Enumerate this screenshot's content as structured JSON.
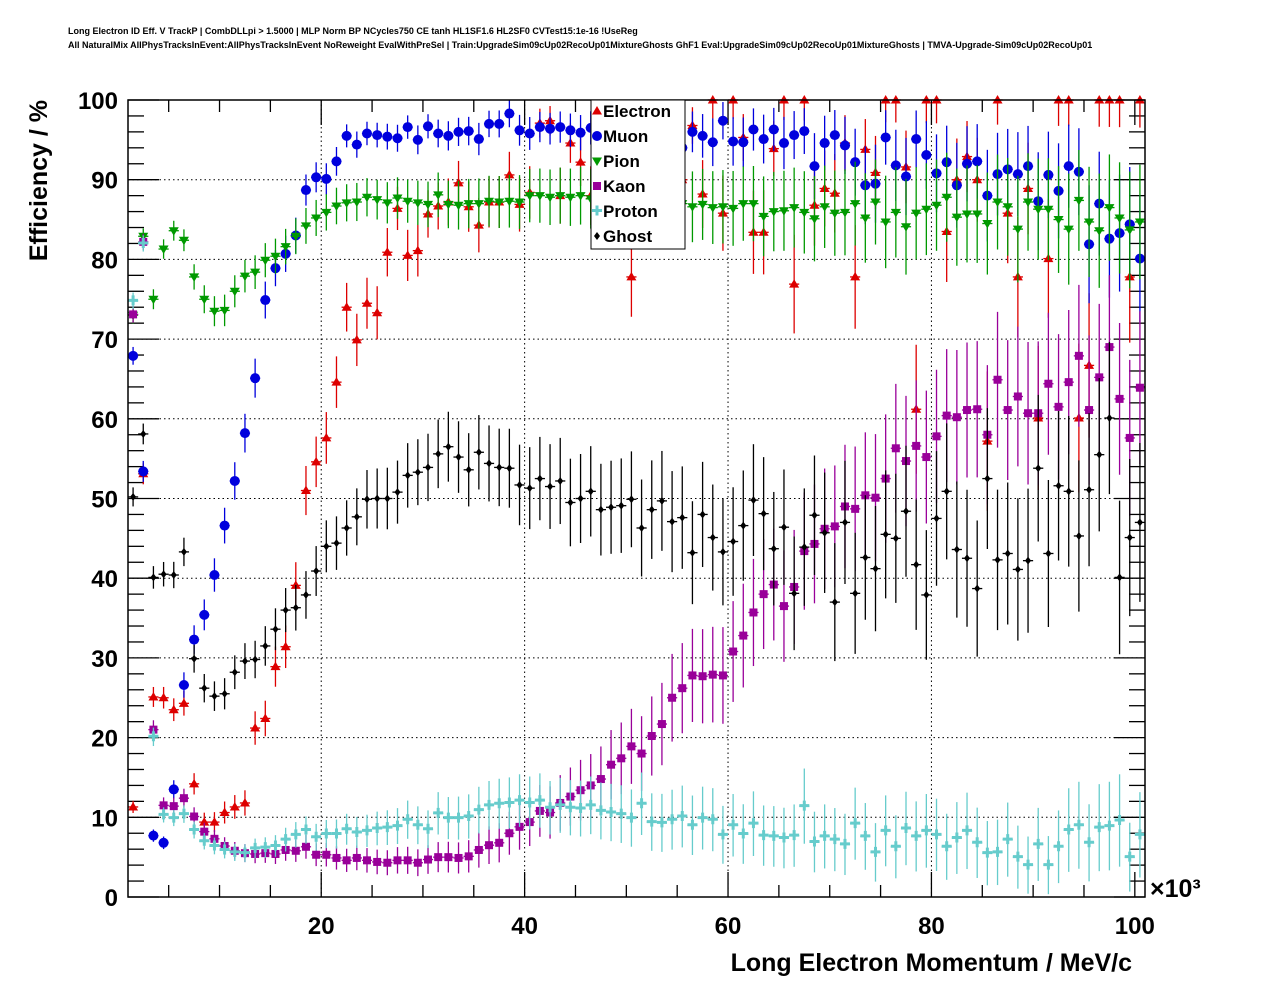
{
  "chart_data": {
    "type": "scatter",
    "title_line1": "Long Electron ID Eff. V TrackP | CombDLLpi > 1.5000 | MLP Norm BP NCycles750 CE tanh HL1SF1.6 HL2SF0 CVTest15:1e-16 !UseReg",
    "title_line2": "All NaturalMix AllPhysTracksInEvent:AllPhysTracksInEvent NoReweight EvalWithPreSel | Train:UpgradeSim09cUp02RecoUp01MixtureGhosts GhF1 Eval:UpgradeSim09cUp02RecoUp01MixtureGhosts | TMVA-Upgrade-Sim09cUp02RecoUp01",
    "xlabel": "Long Electron Momentum / MeV/c",
    "ylabel": "Efficiency / %",
    "x_multiplier": "×10³",
    "xlim": [
      1,
      101
    ],
    "ylim": [
      0,
      100
    ],
    "xticks": [
      "20",
      "40",
      "60",
      "80",
      "100"
    ],
    "yticks": [
      "0",
      "10",
      "20",
      "30",
      "40",
      "50",
      "60",
      "70",
      "80",
      "90",
      "100"
    ],
    "grid": true,
    "legend_position": "top-center",
    "x": [
      1.5,
      2.5,
      3.5,
      4.5,
      5.5,
      6.5,
      7.5,
      8.5,
      9.5,
      10.5,
      11.5,
      12.5,
      13.5,
      14.5,
      15.5,
      16.5,
      17.5,
      18.5,
      19.5,
      20.5,
      21.5,
      22.5,
      23.5,
      24.5,
      25.5,
      26.5,
      27.5,
      28.5,
      29.5,
      30.5,
      31.5,
      32.5,
      33.5,
      34.5,
      35.5,
      36.5,
      37.5,
      38.5,
      39.5,
      40.5,
      41.5,
      42.5,
      43.5,
      44.5,
      45.5,
      46.5,
      47.5,
      48.5,
      49.5,
      50.5,
      51.5,
      52.5,
      53.5,
      54.5,
      55.5,
      56.5,
      57.5,
      58.5,
      59.5,
      60.5,
      61.5,
      62.5,
      63.5,
      64.5,
      65.5,
      66.5,
      67.5,
      68.5,
      69.5,
      70.5,
      71.5,
      72.5,
      73.5,
      74.5,
      75.5,
      76.5,
      77.5,
      78.5,
      79.5,
      80.5,
      81.5,
      82.5,
      83.5,
      84.5,
      85.5,
      86.5,
      87.5,
      88.5,
      89.5,
      90.5,
      91.5,
      92.5,
      93.5,
      94.5,
      95.5,
      96.5,
      97.5,
      98.5,
      99.5,
      100.5
    ],
    "series": [
      {
        "name": "Electron",
        "color": "#dd0000",
        "marker": "triangle-up",
        "values": [
          11.3,
          53.1,
          25.1,
          25.0,
          23.5,
          24.3,
          14.2,
          9.4,
          9.4,
          10.6,
          11.3,
          11.8,
          21.2,
          22.4,
          28.9,
          31.4,
          39.1,
          51.0,
          54.6,
          57.6,
          64.6,
          74.0,
          69.9,
          74.5,
          73.3,
          80.9,
          86.4,
          80.5,
          81.1,
          85.7,
          86.7,
          87.2,
          89.6,
          86.6,
          84.3,
          87.2,
          87.2,
          90.6,
          86.9,
          88.4,
          97.1,
          97.4,
          88.0,
          94.6,
          92.2,
          88.0,
          86.0,
          87.0,
          88.0,
          77.8,
          87.0,
          88.0,
          87.0,
          88.0,
          90.0,
          96.8,
          88.2,
          100,
          85.8,
          100,
          95.3,
          83.4,
          83.4,
          93.9,
          100,
          76.9,
          100,
          86.8,
          88.9,
          88.3,
          94.6,
          77.8,
          93.8,
          90.9,
          100,
          100,
          91.6,
          61.2,
          100,
          100,
          83.5,
          90.0,
          92.9,
          90.0,
          57.2,
          100,
          85.8,
          77.8,
          88.9,
          60.1,
          80.1,
          100,
          100,
          60.1,
          66.7,
          100,
          100,
          100,
          77.8,
          100
        ]
      },
      {
        "name": "Muon",
        "color": "#0000dd",
        "marker": "circle",
        "values": [
          67.9,
          53.4,
          7.7,
          6.8,
          13.5,
          26.6,
          32.3,
          35.4,
          40.4,
          46.6,
          52.2,
          58.2,
          65.1,
          74.9,
          78.9,
          80.7,
          83.0,
          88.7,
          90.3,
          90.1,
          92.3,
          95.5,
          94.4,
          95.8,
          95.6,
          95.4,
          95.2,
          96.6,
          95.0,
          96.7,
          95.8,
          95.5,
          96.0,
          96.1,
          95.1,
          97.0,
          97.0,
          98.3,
          96.2,
          95.8,
          96.6,
          96.4,
          96.6,
          96.2,
          95.9,
          96.5,
          96.0,
          96.3,
          95.8,
          96.1,
          95.6,
          96.0,
          95.4,
          95.8,
          94.0,
          96.0,
          95.5,
          94.7,
          97.4,
          94.8,
          94.7,
          96.3,
          95.1,
          96.3,
          94.6,
          95.6,
          96.1,
          91.7,
          94.6,
          95.6,
          94.3,
          92.2,
          89.3,
          89.5,
          95.3,
          91.8,
          90.4,
          95.1,
          93.1,
          90.8,
          92.2,
          89.3,
          92.0,
          92.3,
          88.0,
          90.7,
          91.3,
          90.7,
          91.7,
          87.3,
          90.6,
          88.6,
          91.7,
          91.0,
          81.9,
          87.0,
          82.6,
          83.3,
          84.4,
          80.1
        ]
      },
      {
        "name": "Pion",
        "color": "#009900",
        "marker": "triangle-down",
        "values": [
          73.0,
          82.9,
          75.0,
          81.3,
          83.6,
          82.4,
          77.8,
          75.0,
          73.5,
          73.6,
          76.0,
          77.9,
          78.4,
          79.9,
          80.4,
          81.6,
          82.9,
          84.2,
          85.2,
          85.9,
          86.7,
          87.1,
          87.2,
          87.8,
          87.5,
          87.1,
          87.7,
          87.3,
          87.1,
          86.9,
          88.1,
          86.9,
          86.8,
          87.0,
          87.0,
          87.3,
          87.2,
          87.3,
          87.2,
          88.0,
          88.0,
          87.8,
          88.0,
          87.8,
          88.0,
          87.6,
          87.4,
          87.2,
          87.5,
          87.0,
          87.3,
          87.1,
          86.8,
          87.0,
          87.0,
          86.6,
          86.9,
          86.5,
          86.6,
          86.4,
          87.0,
          87.0,
          85.4,
          86.0,
          86.1,
          86.5,
          85.9,
          85.1,
          86.6,
          85.8,
          85.9,
          87.0,
          85.2,
          87.2,
          84.7,
          85.9,
          84.1,
          85.8,
          86.3,
          86.8,
          87.8,
          85.3,
          85.7,
          85.7,
          84.5,
          87.2,
          86.6,
          83.8,
          87.2,
          86.3,
          86.3,
          85.0,
          83.8,
          87.4,
          84.7,
          83.6,
          86.5,
          85.2,
          83.7,
          84.7
        ]
      },
      {
        "name": "Kaon",
        "color": "#990099",
        "marker": "square",
        "values": [
          73.1,
          82.2,
          21.0,
          11.5,
          11.4,
          12.4,
          10.1,
          8.2,
          7.3,
          6.4,
          5.8,
          5.5,
          5.4,
          5.5,
          5.4,
          5.9,
          5.8,
          6.3,
          5.3,
          5.3,
          4.9,
          4.6,
          4.9,
          4.6,
          4.4,
          4.3,
          4.6,
          4.6,
          4.3,
          4.7,
          5.0,
          5.0,
          4.9,
          5.1,
          5.9,
          6.5,
          6.8,
          8.0,
          8.8,
          9.4,
          10.8,
          10.6,
          11.8,
          12.6,
          13.4,
          14.0,
          14.8,
          16.6,
          17.4,
          18.9,
          18.0,
          20.2,
          21.7,
          25.0,
          26.2,
          27.8,
          27.7,
          27.9,
          27.8,
          30.8,
          32.8,
          35.7,
          38.0,
          39.2,
          36.5,
          38.9,
          43.4,
          44.3,
          46.2,
          46.5,
          49.0,
          48.7,
          50.4,
          50.1,
          52.5,
          56.3,
          54.7,
          56.6,
          55.2,
          57.8,
          60.4,
          60.2,
          61.1,
          61.2,
          58.0,
          64.9,
          61.1,
          62.8,
          60.7,
          60.7,
          64.4,
          61.5,
          64.6,
          67.9,
          61.1,
          65.2,
          69.0,
          62.5,
          57.6,
          63.9
        ]
      },
      {
        "name": "Proton",
        "color": "#66cccc",
        "marker": "cross",
        "values": [
          74.8,
          82.0,
          20.1,
          10.3,
          9.9,
          10.4,
          8.4,
          7.0,
          6.4,
          5.9,
          5.6,
          5.5,
          6.1,
          6.2,
          6.4,
          7.2,
          7.8,
          8.4,
          7.5,
          7.9,
          7.9,
          8.5,
          8.1,
          8.3,
          8.6,
          8.7,
          8.9,
          9.7,
          9.0,
          8.5,
          10.5,
          9.9,
          9.9,
          10.1,
          10.9,
          11.5,
          11.7,
          11.8,
          12.1,
          11.8,
          12.1,
          11.2,
          11.5,
          11.2,
          11.1,
          11.5,
          10.8,
          10.6,
          10.4,
          9.9,
          11.7,
          9.4,
          9.3,
          9.7,
          10.1,
          9.0,
          9.9,
          9.7,
          7.8,
          9.0,
          7.9,
          9.2,
          7.7,
          7.6,
          7.4,
          7.7,
          11.4,
          6.9,
          7.6,
          7.2,
          6.6,
          9.2,
          7.6,
          5.6,
          8.3,
          6.3,
          8.6,
          7.6,
          8.3,
          7.8,
          6.3,
          7.4,
          8.3,
          6.8,
          5.5,
          5.6,
          7.2,
          5.0,
          4.0,
          6.6,
          4.0,
          6.3,
          8.4,
          9.0,
          6.8,
          8.7,
          8.9,
          9.6,
          5.0,
          7.8
        ]
      },
      {
        "name": "Ghost",
        "color": "#000000",
        "marker": "diamond",
        "values": [
          50.2,
          58.1,
          40.1,
          40.5,
          40.4,
          43.3,
          29.9,
          26.2,
          25.2,
          25.5,
          28.2,
          29.6,
          29.8,
          31.5,
          33.6,
          36.0,
          36.3,
          37.9,
          40.9,
          44.0,
          44.4,
          46.3,
          47.7,
          49.9,
          50.0,
          50.0,
          50.8,
          52.9,
          53.3,
          53.9,
          55.6,
          56.5,
          55.2,
          53.6,
          55.8,
          54.4,
          53.9,
          53.8,
          51.7,
          51.3,
          52.5,
          51.5,
          52.2,
          49.5,
          50.0,
          50.9,
          48.6,
          48.9,
          49.1,
          49.9,
          46.3,
          48.6,
          49.7,
          47.1,
          47.6,
          43.2,
          48.0,
          45.1,
          43.3,
          44.6,
          46.6,
          49.8,
          48.1,
          43.7,
          46.4,
          38.1,
          43.9,
          47.9,
          45.7,
          37.0,
          47.0,
          38.1,
          42.6,
          41.2,
          45.5,
          45.0,
          48.4,
          41.7,
          37.9,
          47.5,
          50.9,
          43.6,
          42.5,
          38.7,
          52.5,
          42.3,
          43.1,
          41.1,
          42.2,
          53.8,
          43.1,
          51.6,
          50.9,
          45.3,
          51.1,
          55.5,
          60.1,
          40.1,
          45.1,
          47.0
        ]
      }
    ]
  }
}
